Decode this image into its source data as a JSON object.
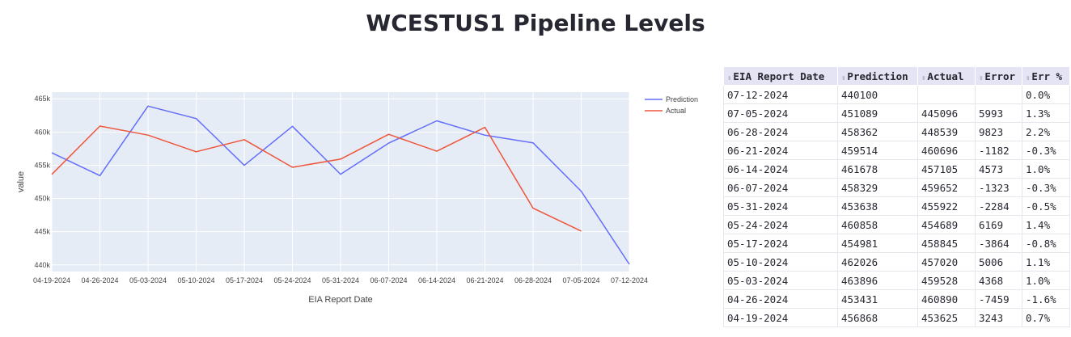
{
  "page": {
    "title": "WCESTUS1 Pipeline Levels"
  },
  "chart_data": {
    "type": "line",
    "xlabel": "EIA Report Date",
    "ylabel": "value",
    "categories": [
      "04-19-2024",
      "04-26-2024",
      "05-03-2024",
      "05-10-2024",
      "05-17-2024",
      "05-24-2024",
      "05-31-2024",
      "06-07-2024",
      "06-14-2024",
      "06-21-2024",
      "06-28-2024",
      "07-05-2024",
      "07-12-2024"
    ],
    "ylim": [
      439000,
      466000
    ],
    "yticks": [
      440000,
      445000,
      450000,
      455000,
      460000,
      465000
    ],
    "ytick_labels": [
      "440k",
      "445k",
      "450k",
      "455k",
      "460k",
      "465k"
    ],
    "grid": true,
    "legend_position": "top-right",
    "series": [
      {
        "name": "Prediction",
        "color": "#636efa",
        "values": [
          456868,
          453431,
          463896,
          462026,
          454981,
          460858,
          453638,
          458329,
          461678,
          459514,
          458362,
          451089,
          440100
        ]
      },
      {
        "name": "Actual",
        "color": "#ef553b",
        "values": [
          453625,
          460890,
          459528,
          457020,
          458845,
          454689,
          455922,
          459652,
          457105,
          460696,
          448539,
          445096,
          null
        ]
      }
    ]
  },
  "table": {
    "columns": [
      "EIA Report Date",
      "Prediction",
      "Actual",
      "Error",
      "Err %"
    ],
    "sort_icon": "⇕",
    "rows": [
      [
        "07-12-2024",
        "440100",
        "",
        "",
        "0.0%"
      ],
      [
        "07-05-2024",
        "451089",
        "445096",
        "5993",
        "1.3%"
      ],
      [
        "06-28-2024",
        "458362",
        "448539",
        "9823",
        "2.2%"
      ],
      [
        "06-21-2024",
        "459514",
        "460696",
        "-1182",
        "-0.3%"
      ],
      [
        "06-14-2024",
        "461678",
        "457105",
        "4573",
        "1.0%"
      ],
      [
        "06-07-2024",
        "458329",
        "459652",
        "-1323",
        "-0.3%"
      ],
      [
        "05-31-2024",
        "453638",
        "455922",
        "-2284",
        "-0.5%"
      ],
      [
        "05-24-2024",
        "460858",
        "454689",
        "6169",
        "1.4%"
      ],
      [
        "05-17-2024",
        "454981",
        "458845",
        "-3864",
        "-0.8%"
      ],
      [
        "05-10-2024",
        "462026",
        "457020",
        "5006",
        "1.1%"
      ],
      [
        "05-03-2024",
        "463896",
        "459528",
        "4368",
        "1.0%"
      ],
      [
        "04-26-2024",
        "453431",
        "460890",
        "-7459",
        "-1.6%"
      ],
      [
        "04-19-2024",
        "456868",
        "453625",
        "3243",
        "0.7%"
      ]
    ]
  }
}
